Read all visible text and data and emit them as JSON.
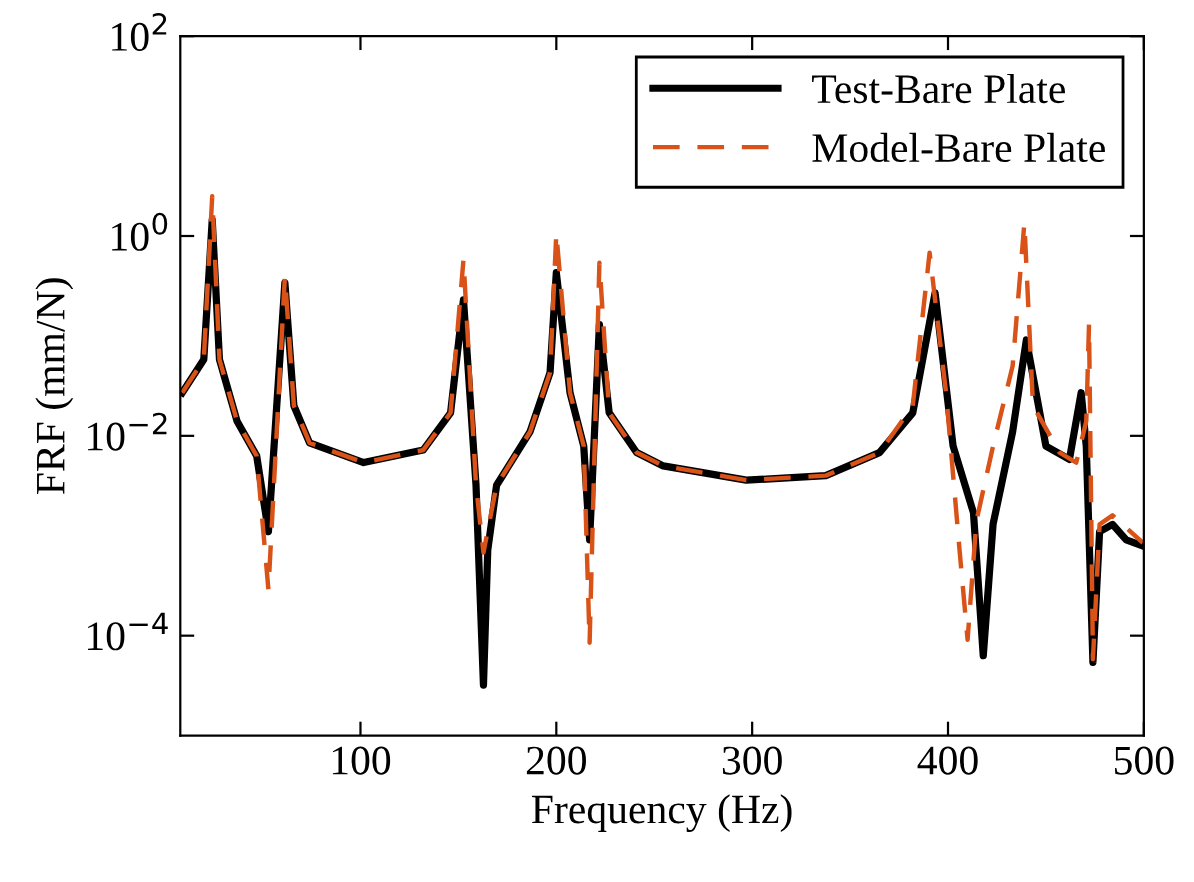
{
  "chart_data": {
    "type": "line",
    "xlabel": "Frequency (Hz)",
    "ylabel": "FRF (mm/N)",
    "log": "y",
    "xlim": [
      8,
      500
    ],
    "xticks": [
      100,
      200,
      300,
      400,
      500
    ],
    "ylim": [
      1e-05,
      100
    ],
    "yticks": [
      {
        "value": 0.0001,
        "label": "10$^{−4}$"
      },
      {
        "value": 0.01,
        "label": "10$^{−2}$"
      },
      {
        "value": 1,
        "label": "10$^{0}$"
      },
      {
        "value": 100,
        "label": "10$^{2}$"
      }
    ],
    "grid": false,
    "legend": "top right",
    "series": [
      {
        "name": "Test-Bare Plate",
        "color": "#000000",
        "line_style": "solid",
        "x": [
          9,
          20,
          24.3,
          28,
          37,
          47,
          53,
          61.4,
          66,
          74,
          101.6,
          132,
          146,
          152.6,
          159,
          162.8,
          165,
          169.5,
          186.6,
          196.8,
          200,
          207,
          214,
          217,
          222,
          227,
          241,
          254.6,
          297,
          337.6,
          365,
          382,
          393.4,
          402.6,
          413,
          418,
          423,
          433,
          440,
          450,
          462,
          468,
          470.6,
          474,
          477.4,
          484,
          491,
          499.5
        ],
        "values": [
          0.027,
          0.058,
          1.45,
          0.058,
          0.014,
          0.0063,
          0.0011,
          0.34,
          0.02,
          0.0085,
          0.0054,
          0.0072,
          0.017,
          0.23,
          0.0032,
          3.2e-05,
          0.00072,
          0.0032,
          0.011,
          0.043,
          0.43,
          0.027,
          0.0079,
          0.00091,
          0.13,
          0.017,
          0.0068,
          0.005,
          0.0036,
          0.004,
          0.0068,
          0.017,
          0.27,
          0.0079,
          0.0017,
          6.3e-05,
          0.0013,
          0.011,
          0.091,
          0.0079,
          0.0058,
          0.027,
          0.0079,
          5.4e-05,
          0.0011,
          0.0013,
          0.00091,
          0.00079
        ]
      },
      {
        "name": "Model-Bare Plate",
        "color": "#d95319",
        "line_style": "dashed",
        "x": [
          9,
          20,
          24.3,
          28,
          37,
          47,
          53,
          61.4,
          66,
          74,
          101.6,
          132,
          146,
          152.6,
          159,
          162.8,
          169.5,
          186.6,
          196.8,
          200,
          207,
          214,
          217,
          222,
          227,
          241,
          254.6,
          297,
          337.6,
          365,
          382,
          390.6,
          399,
          406,
          410,
          414.5,
          423,
          433,
          439,
          443.4,
          457,
          465.5,
          470.6,
          472,
          474,
          477.4,
          484,
          499.5
        ],
        "values": [
          0.027,
          0.058,
          2.5,
          0.058,
          0.014,
          0.0063,
          0.00029,
          0.39,
          0.02,
          0.0085,
          0.0054,
          0.0072,
          0.017,
          0.58,
          0.0032,
          0.00068,
          0.0032,
          0.011,
          0.043,
          1.07,
          0.027,
          0.0079,
          8.5e-05,
          0.54,
          0.017,
          0.0068,
          0.005,
          0.0036,
          0.004,
          0.0068,
          0.02,
          0.68,
          0.027,
          0.00068,
          9.1e-05,
          0.0014,
          0.0079,
          0.05,
          1.35,
          0.02,
          0.0068,
          0.0054,
          0.014,
          0.13,
          5.8e-05,
          0.0013,
          0.0016,
          0.00085
        ]
      }
    ]
  }
}
